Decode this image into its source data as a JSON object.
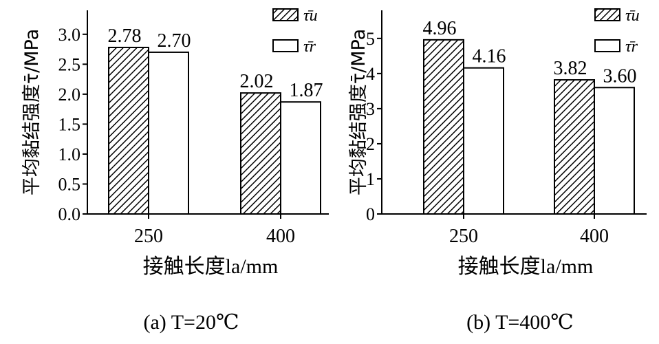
{
  "chart_data": [
    {
      "type": "bar",
      "categories": [
        "250",
        "400"
      ],
      "series": [
        {
          "name": "τ̄u",
          "values": [
            2.78,
            2.02
          ],
          "labels": [
            "2.78",
            "2.02"
          ]
        },
        {
          "name": "τ̄r",
          "values": [
            2.7,
            1.87
          ],
          "labels": [
            "2.70",
            "1.87"
          ]
        }
      ],
      "yticks": [
        "0.0",
        "0.5",
        "1.0",
        "1.5",
        "2.0",
        "2.5",
        "3.0"
      ],
      "ylim": [
        0,
        3.4
      ],
      "ylabel": "平均黏结强度τ̄/MPa",
      "xlabel": "接触长度la/mm",
      "caption": "(a) T=20℃",
      "legend_position": "top-right",
      "grid": false
    },
    {
      "type": "bar",
      "categories": [
        "250",
        "400"
      ],
      "series": [
        {
          "name": "τ̄u",
          "values": [
            4.96,
            3.82
          ],
          "labels": [
            "4.96",
            "3.82"
          ]
        },
        {
          "name": "τ̄r",
          "values": [
            4.16,
            3.6
          ],
          "labels": [
            "4.16",
            "3.60"
          ]
        }
      ],
      "yticks": [
        "0",
        "1",
        "2",
        "3",
        "4",
        "5"
      ],
      "ylim": [
        0,
        5.8
      ],
      "ylabel": "平均黏结强度τ̄/MPa",
      "xlabel": "接触长度la/mm",
      "caption": "(b) T=400℃",
      "legend_position": "top-right",
      "grid": false
    }
  ]
}
